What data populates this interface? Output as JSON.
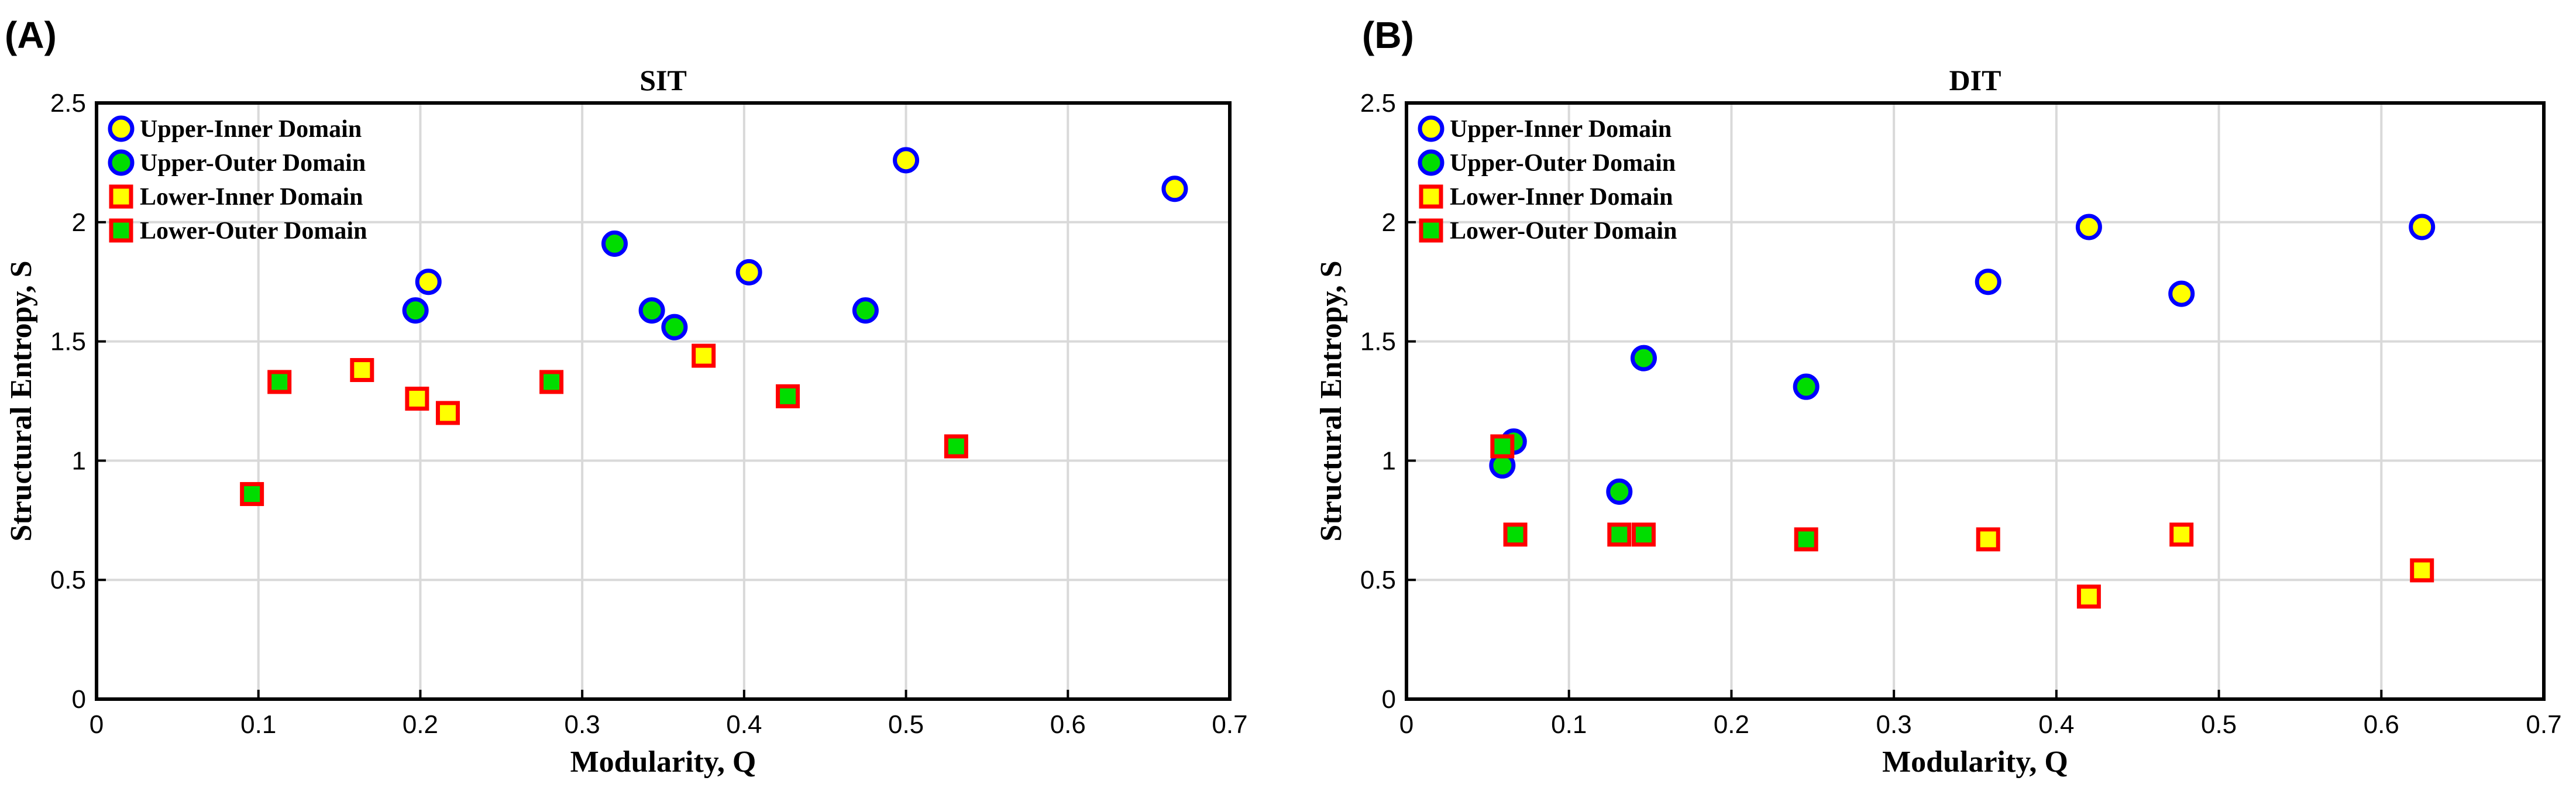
{
  "chart_data": [
    {
      "type": "scatter",
      "panel_label": "(A)",
      "title": "SIT",
      "xlabel": "Modularity, Q",
      "ylabel": "Structural Entropy, S",
      "xlim": [
        0,
        0.7
      ],
      "ylim": [
        0,
        2.5
      ],
      "xticks": [
        "0",
        "0.1",
        "0.2",
        "0.3",
        "0.4",
        "0.5",
        "0.6",
        "0.7"
      ],
      "yticks": [
        "0",
        "0.5",
        "1",
        "1.5",
        "2",
        "2.5"
      ],
      "grid": true,
      "legend_position": "top-left",
      "series": [
        {
          "name": "Upper-Inner Domain",
          "marker": "circle",
          "fill": "#FFFF00",
          "edge": "#0000FF",
          "points": [
            [
              0.205,
              1.75
            ],
            [
              0.403,
              1.79
            ],
            [
              0.5,
              2.26
            ],
            [
              0.666,
              2.14
            ]
          ]
        },
        {
          "name": "Upper-Outer Domain",
          "marker": "circle",
          "fill": "#00DD00",
          "edge": "#0000FF",
          "points": [
            [
              0.197,
              1.63
            ],
            [
              0.32,
              1.91
            ],
            [
              0.343,
              1.63
            ],
            [
              0.357,
              1.56
            ],
            [
              0.475,
              1.63
            ]
          ]
        },
        {
          "name": "Lower-Inner Domain",
          "marker": "square",
          "fill": "#FFFF00",
          "edge": "#FF0000",
          "points": [
            [
              0.164,
              1.38
            ],
            [
              0.198,
              1.26
            ],
            [
              0.217,
              1.2
            ],
            [
              0.375,
              1.44
            ]
          ]
        },
        {
          "name": "Lower-Outer Domain",
          "marker": "square",
          "fill": "#00DD00",
          "edge": "#FF0000",
          "points": [
            [
              0.096,
              0.86
            ],
            [
              0.113,
              1.33
            ],
            [
              0.281,
              1.33
            ],
            [
              0.427,
              1.27
            ],
            [
              0.531,
              1.06
            ]
          ]
        }
      ]
    },
    {
      "type": "scatter",
      "panel_label": "(B)",
      "title": "DIT",
      "xlabel": "Modularity, Q",
      "ylabel": "Structural Entropy, S",
      "xlim": [
        0,
        0.7
      ],
      "ylim": [
        0,
        2.5
      ],
      "xticks": [
        "0",
        "0.1",
        "0.2",
        "0.3",
        "0.4",
        "0.5",
        "0.6",
        "0.7"
      ],
      "yticks": [
        "0",
        "0.5",
        "1",
        "1.5",
        "2",
        "2.5"
      ],
      "grid": true,
      "legend_position": "top-left",
      "series": [
        {
          "name": "Upper-Inner Domain",
          "marker": "circle",
          "fill": "#FFFF00",
          "edge": "#0000FF",
          "points": [
            [
              0.358,
              1.75
            ],
            [
              0.42,
              1.98
            ],
            [
              0.477,
              1.7
            ],
            [
              0.625,
              1.98
            ]
          ]
        },
        {
          "name": "Upper-Outer Domain",
          "marker": "circle",
          "fill": "#00DD00",
          "edge": "#0000FF",
          "points": [
            [
              0.059,
              0.98
            ],
            [
              0.066,
              1.08
            ],
            [
              0.131,
              0.87
            ],
            [
              0.146,
              1.43
            ],
            [
              0.246,
              1.31
            ]
          ]
        },
        {
          "name": "Lower-Inner Domain",
          "marker": "square",
          "fill": "#FFFF00",
          "edge": "#FF0000",
          "points": [
            [
              0.358,
              0.67
            ],
            [
              0.42,
              0.43
            ],
            [
              0.477,
              0.69
            ],
            [
              0.625,
              0.54
            ]
          ]
        },
        {
          "name": "Lower-Outer Domain",
          "marker": "square",
          "fill": "#00DD00",
          "edge": "#FF0000",
          "points": [
            [
              0.059,
              1.06
            ],
            [
              0.067,
              0.69
            ],
            [
              0.131,
              0.69
            ],
            [
              0.146,
              0.69
            ],
            [
              0.246,
              0.67
            ]
          ]
        }
      ]
    }
  ]
}
